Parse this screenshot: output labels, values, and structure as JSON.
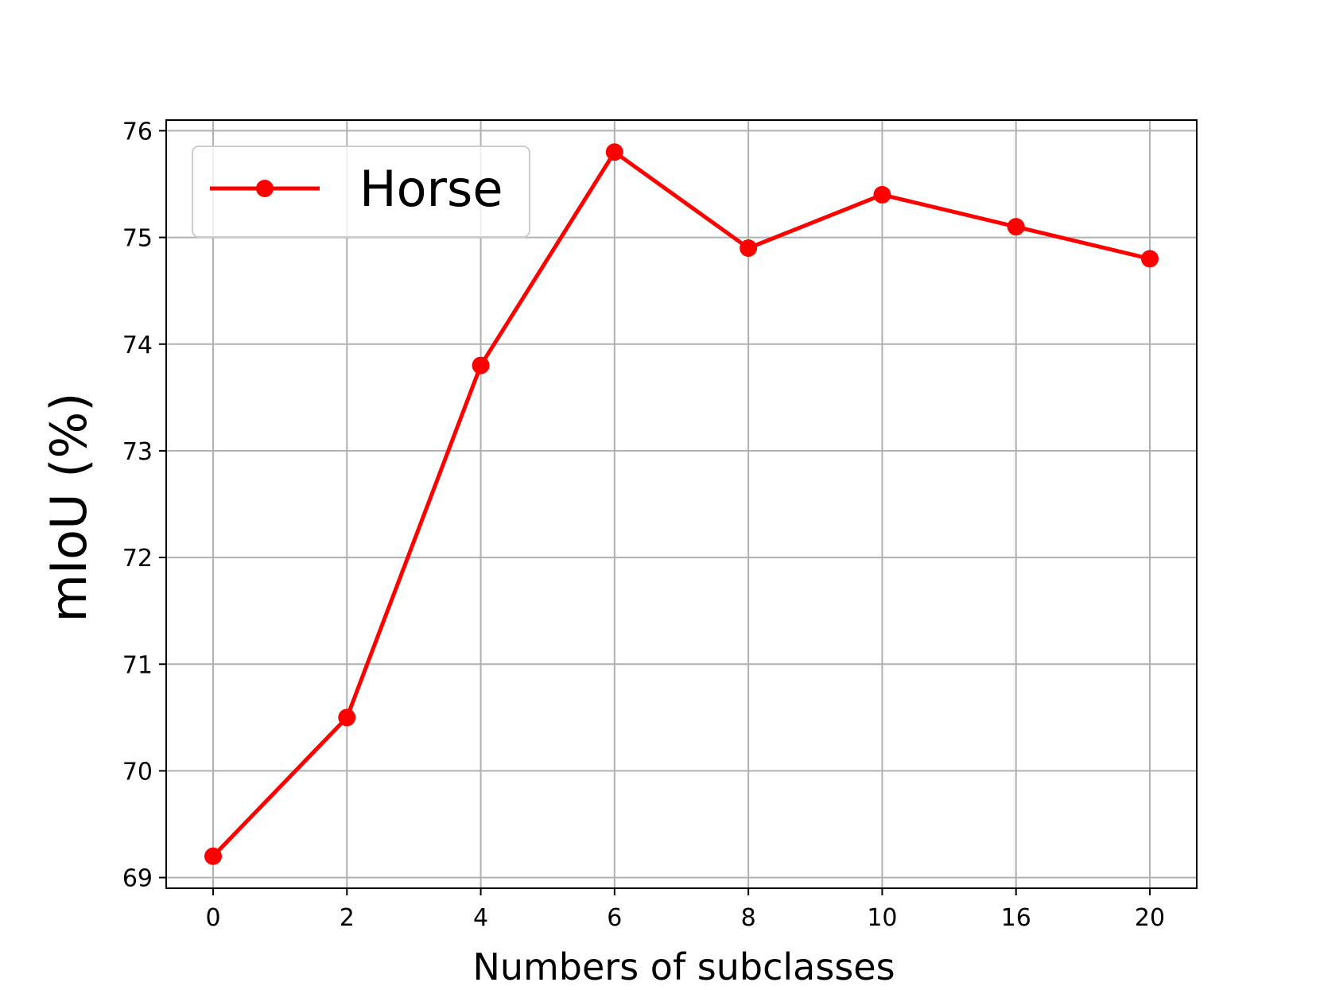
{
  "chart_data": {
    "type": "line",
    "title": "",
    "xlabel": "Numbers of subclasses",
    "ylabel": "mIoU (%)",
    "categories": [
      "0",
      "2",
      "4",
      "6",
      "8",
      "10",
      "16",
      "20"
    ],
    "series": [
      {
        "name": "Horse",
        "color": "#ff0000",
        "marker": "circle",
        "values": [
          69.2,
          70.5,
          73.8,
          75.8,
          74.9,
          75.4,
          75.1,
          74.8
        ]
      }
    ],
    "ylim": [
      68.9,
      76.1
    ],
    "yticks": [
      69,
      70,
      71,
      72,
      73,
      74,
      75,
      76
    ],
    "grid": true,
    "legend": "upper-left"
  }
}
